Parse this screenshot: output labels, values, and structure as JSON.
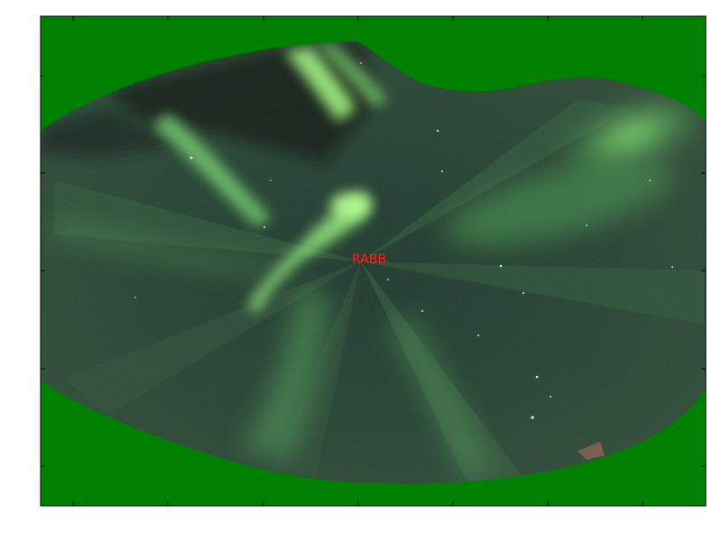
{
  "map": {
    "station_label": "RABB",
    "colors": {
      "background_fill": "#008000",
      "label": "#ff2020",
      "frame": "#000000",
      "aurora_bright": "#9dff7a",
      "aurora_mid": "#4fbf55",
      "sky_dark": "#173325"
    },
    "axes": {
      "tick_labels_visible": false,
      "grid": false
    }
  }
}
